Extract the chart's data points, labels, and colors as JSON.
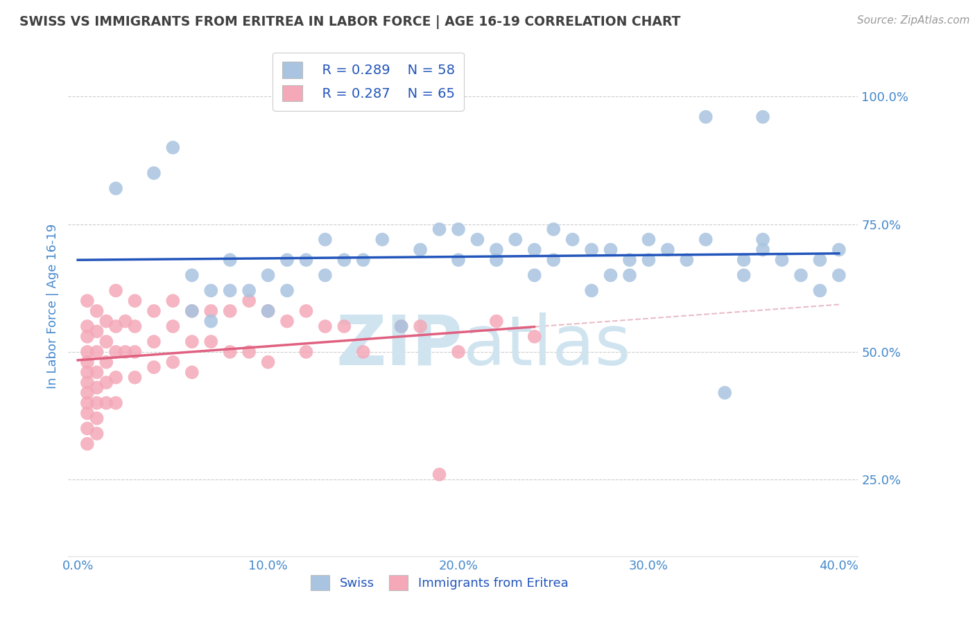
{
  "title": "SWISS VS IMMIGRANTS FROM ERITREA IN LABOR FORCE | AGE 16-19 CORRELATION CHART",
  "source_text": "Source: ZipAtlas.com",
  "ylabel": "In Labor Force | Age 16-19",
  "x_tick_labels": [
    "0.0%",
    "10.0%",
    "20.0%",
    "30.0%",
    "40.0%"
  ],
  "x_tick_vals": [
    0.0,
    0.1,
    0.2,
    0.3,
    0.4
  ],
  "y_tick_labels": [
    "25.0%",
    "50.0%",
    "75.0%",
    "100.0%"
  ],
  "y_tick_vals": [
    0.25,
    0.5,
    0.75,
    1.0
  ],
  "xlim": [
    -0.005,
    0.41
  ],
  "ylim": [
    0.1,
    1.08
  ],
  "legend_r_swiss": "R = 0.289",
  "legend_n_swiss": "N = 58",
  "legend_r_eritrea": "R = 0.287",
  "legend_n_eritrea": "N = 65",
  "swiss_color": "#a8c4e0",
  "eritrea_color": "#f4a8b8",
  "swiss_line_color": "#2255bb",
  "eritrea_line_color": "#e06080",
  "ref_line_color": "#cccccc",
  "background_color": "#ffffff",
  "title_color": "#404040",
  "axis_color": "#4488cc",
  "watermark_color": "#d0e4f0",
  "swiss_x": [
    0.02,
    0.04,
    0.05,
    0.06,
    0.06,
    0.07,
    0.07,
    0.08,
    0.08,
    0.09,
    0.1,
    0.1,
    0.11,
    0.11,
    0.12,
    0.13,
    0.13,
    0.14,
    0.15,
    0.16,
    0.17,
    0.18,
    0.19,
    0.2,
    0.2,
    0.21,
    0.22,
    0.22,
    0.23,
    0.24,
    0.24,
    0.25,
    0.25,
    0.26,
    0.27,
    0.27,
    0.28,
    0.28,
    0.29,
    0.3,
    0.3,
    0.31,
    0.32,
    0.33,
    0.34,
    0.35,
    0.35,
    0.36,
    0.36,
    0.37,
    0.38,
    0.39,
    0.39,
    0.4,
    0.4,
    0.36,
    0.33,
    0.29
  ],
  "swiss_y": [
    0.82,
    0.85,
    0.9,
    0.58,
    0.65,
    0.56,
    0.62,
    0.62,
    0.68,
    0.62,
    0.65,
    0.58,
    0.62,
    0.68,
    0.68,
    0.65,
    0.72,
    0.68,
    0.68,
    0.72,
    0.55,
    0.7,
    0.74,
    0.68,
    0.74,
    0.72,
    0.7,
    0.68,
    0.72,
    0.65,
    0.7,
    0.74,
    0.68,
    0.72,
    0.7,
    0.62,
    0.65,
    0.7,
    0.65,
    0.72,
    0.68,
    0.7,
    0.68,
    0.72,
    0.42,
    0.65,
    0.68,
    0.72,
    0.7,
    0.68,
    0.65,
    0.62,
    0.68,
    0.7,
    0.65,
    0.96,
    0.96,
    0.68
  ],
  "eritrea_x": [
    0.005,
    0.005,
    0.005,
    0.005,
    0.005,
    0.005,
    0.005,
    0.005,
    0.005,
    0.005,
    0.005,
    0.005,
    0.01,
    0.01,
    0.01,
    0.01,
    0.01,
    0.01,
    0.01,
    0.01,
    0.015,
    0.015,
    0.015,
    0.015,
    0.015,
    0.02,
    0.02,
    0.02,
    0.02,
    0.02,
    0.025,
    0.025,
    0.03,
    0.03,
    0.03,
    0.03,
    0.04,
    0.04,
    0.04,
    0.05,
    0.05,
    0.05,
    0.06,
    0.06,
    0.06,
    0.07,
    0.07,
    0.08,
    0.08,
    0.09,
    0.09,
    0.1,
    0.1,
    0.11,
    0.12,
    0.12,
    0.13,
    0.14,
    0.15,
    0.17,
    0.18,
    0.19,
    0.2,
    0.22,
    0.24
  ],
  "eritrea_y": [
    0.6,
    0.55,
    0.53,
    0.5,
    0.48,
    0.46,
    0.44,
    0.42,
    0.4,
    0.38,
    0.35,
    0.32,
    0.58,
    0.54,
    0.5,
    0.46,
    0.43,
    0.4,
    0.37,
    0.34,
    0.56,
    0.52,
    0.48,
    0.44,
    0.4,
    0.62,
    0.55,
    0.5,
    0.45,
    0.4,
    0.56,
    0.5,
    0.6,
    0.55,
    0.5,
    0.45,
    0.58,
    0.52,
    0.47,
    0.6,
    0.55,
    0.48,
    0.58,
    0.52,
    0.46,
    0.58,
    0.52,
    0.58,
    0.5,
    0.6,
    0.5,
    0.58,
    0.48,
    0.56,
    0.58,
    0.5,
    0.55,
    0.55,
    0.5,
    0.55,
    0.55,
    0.26,
    0.5,
    0.56,
    0.53
  ]
}
